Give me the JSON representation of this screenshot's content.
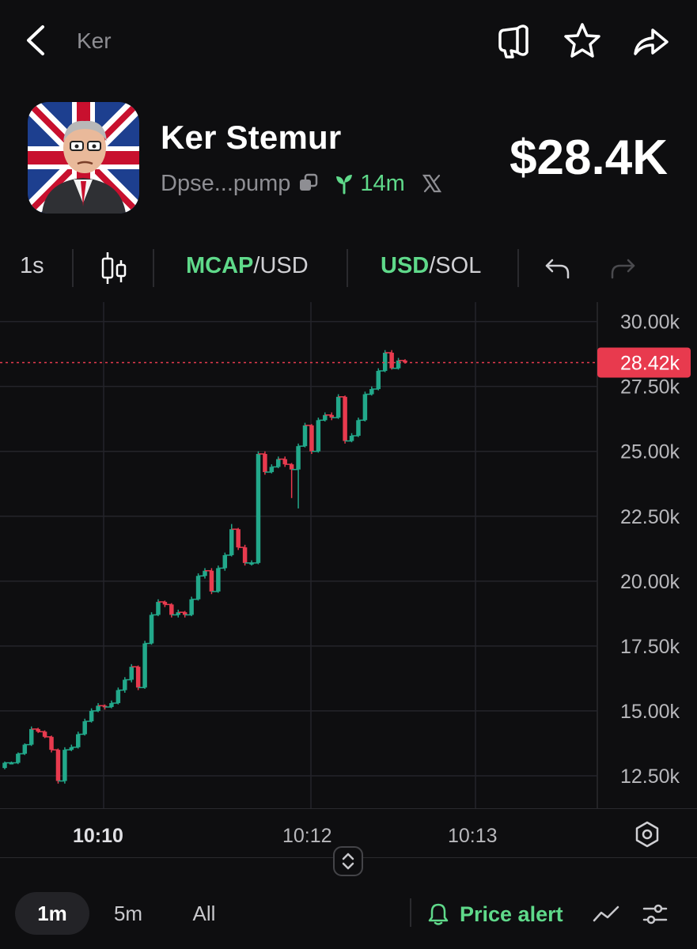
{
  "topbar": {
    "back_icon": "chevron-left-icon",
    "crumb": "Ker",
    "actions": [
      "megaphone-icon",
      "star-icon",
      "share-arrow-icon"
    ]
  },
  "token": {
    "name": "Ker Stemur",
    "address": "Dpse...pump",
    "age": "14m",
    "market_cap": "$28.4K",
    "avatar": "token-avatar-cartoon-union-jack"
  },
  "toolbar": {
    "interval": "1s",
    "mcap_hl": "MCAP",
    "mcap_rest": "/USD",
    "usd_hl": "USD",
    "usd_rest": "/SOL"
  },
  "chart_data": {
    "type": "candlestick",
    "y_ticks": [
      "30.00k",
      "27.50k",
      "25.00k",
      "22.50k",
      "20.00k",
      "17.50k",
      "15.00k",
      "12.50k"
    ],
    "ylim": [
      11250,
      30750
    ],
    "current_price_label": "28.42k",
    "current_price": 28420,
    "x_ticks": [
      "10:10",
      "10:12",
      "10:13"
    ],
    "candles": [
      [
        12800,
        13000,
        13050,
        12750
      ],
      [
        13000,
        13000,
        13050,
        12950
      ],
      [
        13000,
        13350,
        13400,
        12950
      ],
      [
        13350,
        13700,
        13750,
        13300
      ],
      [
        13700,
        14300,
        14400,
        13650
      ],
      [
        14300,
        14200,
        14350,
        14150
      ],
      [
        14200,
        14000,
        14250,
        13950
      ],
      [
        14000,
        13500,
        14050,
        13400
      ],
      [
        13500,
        12300,
        13550,
        12200
      ],
      [
        12300,
        13500,
        13600,
        12200
      ],
      [
        13500,
        13600,
        13700,
        13450
      ],
      [
        13600,
        14100,
        14200,
        13550
      ],
      [
        14100,
        14600,
        14700,
        14050
      ],
      [
        14600,
        15000,
        15100,
        14550
      ],
      [
        15000,
        15200,
        15300,
        14950
      ],
      [
        15200,
        15150,
        15250,
        15050
      ],
      [
        15150,
        15300,
        15400,
        15100
      ],
      [
        15300,
        15800,
        15900,
        15250
      ],
      [
        15800,
        16200,
        16300,
        15700
      ],
      [
        16200,
        16700,
        16800,
        16100
      ],
      [
        16700,
        15900,
        16750,
        15800
      ],
      [
        15900,
        17600,
        17700,
        15850
      ],
      [
        17600,
        18700,
        18800,
        17550
      ],
      [
        18700,
        19200,
        19300,
        18650
      ],
      [
        19200,
        19100,
        19250,
        19000
      ],
      [
        19100,
        18700,
        19150,
        18600
      ],
      [
        18700,
        18800,
        18900,
        18600
      ],
      [
        18800,
        18700,
        18850,
        18600
      ],
      [
        18700,
        19300,
        19400,
        18650
      ],
      [
        19300,
        20200,
        20300,
        19250
      ],
      [
        20200,
        20400,
        20500,
        20100
      ],
      [
        20400,
        19600,
        20500,
        19500
      ],
      [
        19600,
        20500,
        20600,
        19550
      ],
      [
        20500,
        21000,
        21100,
        20400
      ],
      [
        21000,
        22000,
        22200,
        20950
      ],
      [
        22000,
        21300,
        22050,
        21200
      ],
      [
        21300,
        20700,
        21400,
        20600
      ],
      [
        20700,
        20700,
        20800,
        20600
      ],
      [
        20700,
        24900,
        25000,
        20650
      ],
      [
        24900,
        24200,
        25000,
        24100
      ],
      [
        24200,
        24400,
        24500,
        24150
      ],
      [
        24400,
        24700,
        24800,
        24350
      ],
      [
        24700,
        24500,
        24800,
        24400
      ],
      [
        24500,
        24300,
        24550,
        23200
      ],
      [
        24300,
        25200,
        25300,
        22800
      ],
      [
        25200,
        26000,
        26100,
        25150
      ],
      [
        26000,
        25000,
        26050,
        24900
      ],
      [
        25000,
        26200,
        26300,
        24950
      ],
      [
        26200,
        26400,
        26500,
        26150
      ],
      [
        26400,
        26300,
        26500,
        26200
      ],
      [
        26300,
        27100,
        27200,
        26250
      ],
      [
        27100,
        25400,
        27150,
        25300
      ],
      [
        25400,
        25600,
        25700,
        25350
      ],
      [
        25600,
        26200,
        26300,
        25550
      ],
      [
        26200,
        27200,
        27300,
        26150
      ],
      [
        27200,
        27400,
        27500,
        27150
      ],
      [
        27400,
        28100,
        28200,
        27350
      ],
      [
        28100,
        28800,
        28900,
        28050
      ],
      [
        28800,
        28200,
        28900,
        28150
      ],
      [
        28200,
        28500,
        28600,
        28150
      ],
      [
        28500,
        28420,
        28550,
        28380
      ]
    ]
  },
  "bottombar": {
    "intervals": [
      "1m",
      "5m",
      "All"
    ],
    "price_alert": "Price alert"
  }
}
